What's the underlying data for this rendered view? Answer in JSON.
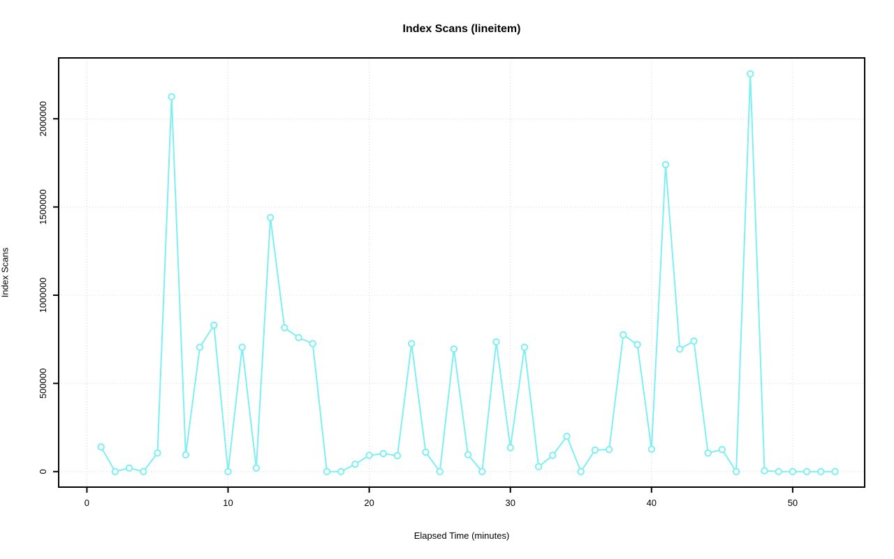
{
  "chart_data": {
    "type": "line",
    "title": "Index Scans (lineitem)",
    "xlabel": "Elapsed Time (minutes)",
    "ylabel": "Index Scans",
    "x": [
      1,
      2,
      3,
      4,
      5,
      6,
      7,
      8,
      9,
      10,
      11,
      12,
      13,
      14,
      15,
      16,
      17,
      18,
      19,
      20,
      21,
      22,
      23,
      24,
      25,
      26,
      27,
      28,
      29,
      30,
      31,
      32,
      33,
      34,
      35,
      36,
      37,
      38,
      39,
      40,
      41,
      42,
      43,
      44,
      45,
      46,
      47,
      48,
      49,
      50,
      51,
      52,
      53
    ],
    "values": [
      140000,
      0,
      20000,
      0,
      105000,
      2125000,
      95000,
      705000,
      830000,
      0,
      705000,
      20000,
      1440000,
      815000,
      760000,
      725000,
      0,
      0,
      42000,
      92000,
      102000,
      90000,
      725000,
      110000,
      0,
      695000,
      96000,
      0,
      735000,
      135000,
      705000,
      28000,
      92000,
      200000,
      0,
      122000,
      125000,
      775000,
      720000,
      127000,
      1740000,
      695000,
      740000,
      105000,
      125000,
      0,
      2255000,
      5000,
      0,
      0,
      0,
      0,
      0
    ],
    "xticks": [
      0,
      10,
      20,
      30,
      40,
      50
    ],
    "yticks": [
      0,
      500000,
      1000000,
      1500000,
      2000000
    ],
    "ytick_labels": [
      "0",
      "500000",
      "1000000",
      "1500000",
      "2000000"
    ],
    "xlim": [
      -2.0,
      55.1
    ],
    "ylim": [
      -88000,
      2345000
    ],
    "grid": "dotted",
    "legend": "none",
    "marker": "open-circle",
    "colors": {
      "line": "#7ceff2",
      "grid": "#d4d4d4",
      "axis": "#000000",
      "background": "#ffffff"
    }
  }
}
